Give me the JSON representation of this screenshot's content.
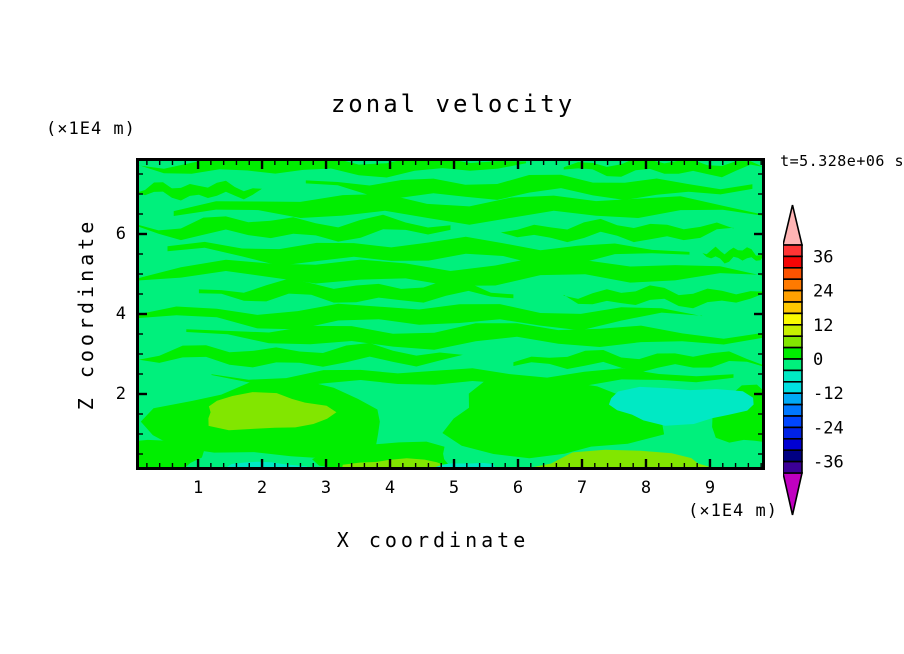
{
  "chart_data": {
    "type": "filled_contour",
    "title": "zonal velocity",
    "time_annotation": "t=5.328e+06 s",
    "xlabel": "X coordinate",
    "ylabel": "Z coordinate",
    "x_unit_scale": "(×1E4 m)",
    "y_unit_scale": "(×1E4 m)",
    "x_range": [
      0.03,
      9.86
    ],
    "y_range": [
      0.1,
      7.9
    ],
    "x_major_ticks": [
      1,
      2,
      3,
      4,
      5,
      6,
      7,
      8,
      9
    ],
    "x_minor_step": 0.2,
    "y_major_ticks": [
      2,
      4,
      6
    ],
    "y_minor_step": 0.5,
    "grid": false,
    "legend_position": "right-colorbar",
    "colorbar": {
      "value_min": -40,
      "value_max": 40,
      "level_step": 4,
      "tick_labels": [
        "36",
        "24",
        "12",
        "0",
        "-12",
        "-24",
        "-36"
      ],
      "tick_every_n_levels": 3,
      "segment_colors": [
        "#ff3434",
        "#f50505",
        "#fc5200",
        "#ff7a00",
        "#ffa000",
        "#ffc800",
        "#fbfb00",
        "#c8f000",
        "#82e600",
        "#00ee00",
        "#00f07c",
        "#00e9c4",
        "#00e0e0",
        "#00aaf5",
        "#0078ff",
        "#0046ff",
        "#0022e6",
        "#0000d2",
        "#000082",
        "#3c0096"
      ],
      "over_arrow_color": "#ffb4b4",
      "under_arrow_color": "#c000c0"
    },
    "field": {
      "description": "horizontally striated zonal velocity field; background is the -4..0 band, stripes are the 0..+4 band",
      "background_color": "#00f07c",
      "stripe_color": "#00ee00",
      "background_value_band": [
        -4,
        0
      ],
      "stripe_value_band": [
        0,
        4
      ],
      "stripes": [
        [
          0.025,
          0.04,
          0.0,
          0.62
        ],
        [
          0.03,
          0.035,
          0.68,
          1.0
        ],
        [
          0.095,
          0.048,
          0.27,
          0.98
        ],
        [
          0.105,
          0.035,
          0.0,
          0.2
        ],
        [
          0.16,
          0.055,
          0.06,
          1.0
        ],
        [
          0.225,
          0.048,
          0.0,
          0.5
        ],
        [
          0.235,
          0.042,
          0.58,
          0.95
        ],
        [
          0.3,
          0.05,
          0.05,
          0.88
        ],
        [
          0.31,
          0.03,
          0.9,
          1.0
        ],
        [
          0.365,
          0.055,
          0.0,
          1.0
        ],
        [
          0.43,
          0.045,
          0.1,
          0.6
        ],
        [
          0.445,
          0.04,
          0.68,
          1.0
        ],
        [
          0.505,
          0.05,
          0.0,
          0.9
        ],
        [
          0.57,
          0.05,
          0.08,
          1.0
        ],
        [
          0.635,
          0.045,
          0.0,
          0.52
        ],
        [
          0.65,
          0.04,
          0.6,
          1.0
        ],
        [
          0.705,
          0.038,
          0.12,
          0.95
        ]
      ],
      "blobs": [
        {
          "cx": 0.215,
          "cy": 0.845,
          "rx": 0.19,
          "ry": 0.12,
          "color": "#00ee00",
          "value_band": [
            0,
            4
          ]
        },
        {
          "cx": 0.655,
          "cy": 0.835,
          "rx": 0.165,
          "ry": 0.125,
          "color": "#00ee00",
          "value_band": [
            0,
            4
          ]
        },
        {
          "cx": 0.03,
          "cy": 0.96,
          "rx": 0.07,
          "ry": 0.06,
          "color": "#00ee00",
          "value_band": [
            0,
            4
          ]
        },
        {
          "cx": 0.4,
          "cy": 0.965,
          "rx": 0.105,
          "ry": 0.055,
          "color": "#00ee00",
          "value_band": [
            0,
            4
          ]
        },
        {
          "cx": 0.975,
          "cy": 0.83,
          "rx": 0.06,
          "ry": 0.09,
          "color": "#00ee00",
          "value_band": [
            0,
            4
          ]
        }
      ],
      "patches": [
        {
          "cx": 0.205,
          "cy": 0.815,
          "rx": 0.1,
          "ry": 0.058,
          "color": "#82e600",
          "value_band": [
            4,
            8
          ]
        },
        {
          "cx": 0.865,
          "cy": 0.79,
          "rx": 0.115,
          "ry": 0.058,
          "color": "#00e9c4",
          "value_band": [
            -8,
            -4
          ]
        },
        {
          "cx": 0.415,
          "cy": 0.995,
          "rx": 0.08,
          "ry": 0.03,
          "color": "#82e600",
          "value_band": [
            4,
            8
          ]
        },
        {
          "cx": 0.775,
          "cy": 0.995,
          "rx": 0.15,
          "ry": 0.055,
          "color": "#82e600",
          "value_band": [
            4,
            8
          ]
        },
        {
          "cx": 0.205,
          "cy": 0.998,
          "rx": 0.062,
          "ry": 0.024,
          "color": "#00e9c4",
          "value_band": [
            -8,
            -4
          ]
        },
        {
          "cx": 0.525,
          "cy": 0.998,
          "rx": 0.048,
          "ry": 0.022,
          "color": "#00e9c4",
          "value_band": [
            -8,
            -4
          ]
        }
      ]
    }
  }
}
